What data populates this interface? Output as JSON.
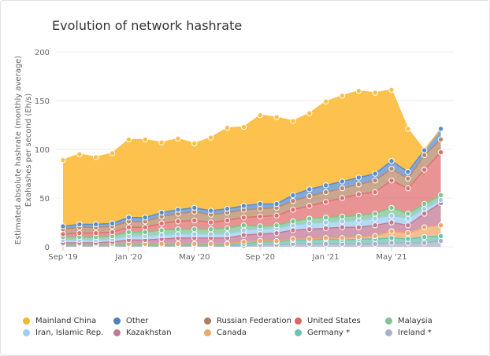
{
  "chart_data": {
    "type": "area",
    "stacked": true,
    "title": "Evolution of network hashrate",
    "ylabel": [
      "Estimated absolute hashrate (monthly average)",
      "Exahashes per second (Eh/s)"
    ],
    "xlabel": "",
    "ylim": [
      0,
      200
    ],
    "yticks": [
      0,
      50,
      100,
      150,
      200
    ],
    "grid": true,
    "legend_position": "bottom",
    "x": [
      "Sep '19",
      "Oct '19",
      "Nov '19",
      "Dec '19",
      "Jan '20",
      "Feb '20",
      "Mar '20",
      "Apr '20",
      "May '20",
      "Jun '20",
      "Jul '20",
      "Aug '20",
      "Sep '20",
      "Oct '20",
      "Nov '20",
      "Dec '20",
      "Jan '21",
      "Feb '21",
      "Mar '21",
      "Apr '21",
      "May '21",
      "Jun '21",
      "Jul '21",
      "Aug '21"
    ],
    "xtick_labels": [
      "Sep '19",
      "Jan '20",
      "May '20",
      "Sep '20",
      "Jan '21",
      "May '21"
    ],
    "series": [
      {
        "name": "Ireland *",
        "color": "#aab0c8",
        "values": [
          1,
          1,
          1,
          1,
          1,
          1,
          1,
          1,
          1,
          1,
          1,
          1,
          2,
          2,
          3,
          3,
          3,
          3,
          3,
          3,
          4,
          4,
          4,
          6
        ]
      },
      {
        "name": "Germany *",
        "color": "#6cc4b0",
        "values": [
          1,
          1,
          1,
          1,
          1,
          1,
          1,
          1,
          1,
          1,
          1,
          2,
          3,
          3,
          4,
          4,
          5,
          4,
          5,
          5,
          5,
          4,
          6,
          5
        ]
      },
      {
        "name": "Canada",
        "color": "#efa86b",
        "values": [
          1,
          1,
          1,
          1,
          1,
          1,
          1,
          1,
          1,
          1,
          1,
          2,
          1,
          1,
          1,
          1,
          1,
          2,
          2,
          3,
          7,
          6,
          10,
          11
        ]
      },
      {
        "name": "Kazakhstan",
        "color": "#c47a95",
        "values": [
          1,
          1,
          1,
          2,
          4,
          4,
          5,
          6,
          6,
          6,
          6,
          7,
          7,
          8,
          9,
          10,
          10,
          11,
          10,
          11,
          9,
          8,
          14,
          23
        ]
      },
      {
        "name": "Iran, Islamic Rep.",
        "color": "#9fcdf0",
        "values": [
          3,
          3,
          3,
          3,
          4,
          4,
          4,
          4,
          4,
          4,
          4,
          5,
          5,
          5,
          5,
          6,
          6,
          6,
          7,
          7,
          7,
          7,
          5,
          3
        ]
      },
      {
        "name": "Malaysia",
        "color": "#7dc68f",
        "values": [
          3,
          3,
          3,
          3,
          4,
          4,
          5,
          5,
          5,
          5,
          6,
          5,
          3,
          3,
          4,
          5,
          5,
          5,
          5,
          5,
          8,
          5,
          5,
          5
        ]
      },
      {
        "name": "United States",
        "color": "#e07070",
        "values": [
          3,
          4,
          4,
          4,
          5,
          5,
          7,
          8,
          9,
          7,
          8,
          8,
          10,
          10,
          12,
          13,
          16,
          19,
          22,
          22,
          28,
          26,
          35,
          44
        ]
      },
      {
        "name": "Russian Federation",
        "color": "#b88a6a",
        "values": [
          5,
          6,
          6,
          6,
          6,
          6,
          7,
          8,
          9,
          8,
          8,
          8,
          8,
          8,
          9,
          10,
          10,
          10,
          10,
          12,
          12,
          10,
          15,
          13
        ]
      },
      {
        "name": "Other",
        "color": "#5b8ccc",
        "values": [
          3,
          3,
          3,
          3,
          4,
          4,
          4,
          4,
          4,
          4,
          4,
          4,
          5,
          4,
          6,
          7,
          7,
          7,
          7,
          7,
          8,
          7,
          5,
          11
        ]
      },
      {
        "name": "Mainland China",
        "color": "#fdbf45",
        "values": [
          68,
          72,
          69,
          72,
          80,
          80,
          72,
          73,
          66,
          75,
          83,
          81,
          91,
          89,
          76,
          78,
          86,
          88,
          89,
          83,
          73,
          44,
          0,
          0
        ]
      }
    ]
  },
  "legend": [
    {
      "name": "Mainland China",
      "color": "#f9b52c"
    },
    {
      "name": "Other",
      "color": "#4f7fc2"
    },
    {
      "name": "Russian Federation",
      "color": "#a97d5e"
    },
    {
      "name": "United States",
      "color": "#dc6464"
    },
    {
      "name": "Malaysia",
      "color": "#7dc68f"
    },
    {
      "name": "Iran, Islamic Rep.",
      "color": "#9fcdf0"
    },
    {
      "name": "Kazakhstan",
      "color": "#c47a95"
    },
    {
      "name": "Canada",
      "color": "#efa86b"
    },
    {
      "name": "Germany *",
      "color": "#6cc4b0"
    },
    {
      "name": "Ireland *",
      "color": "#aab0c8"
    }
  ]
}
